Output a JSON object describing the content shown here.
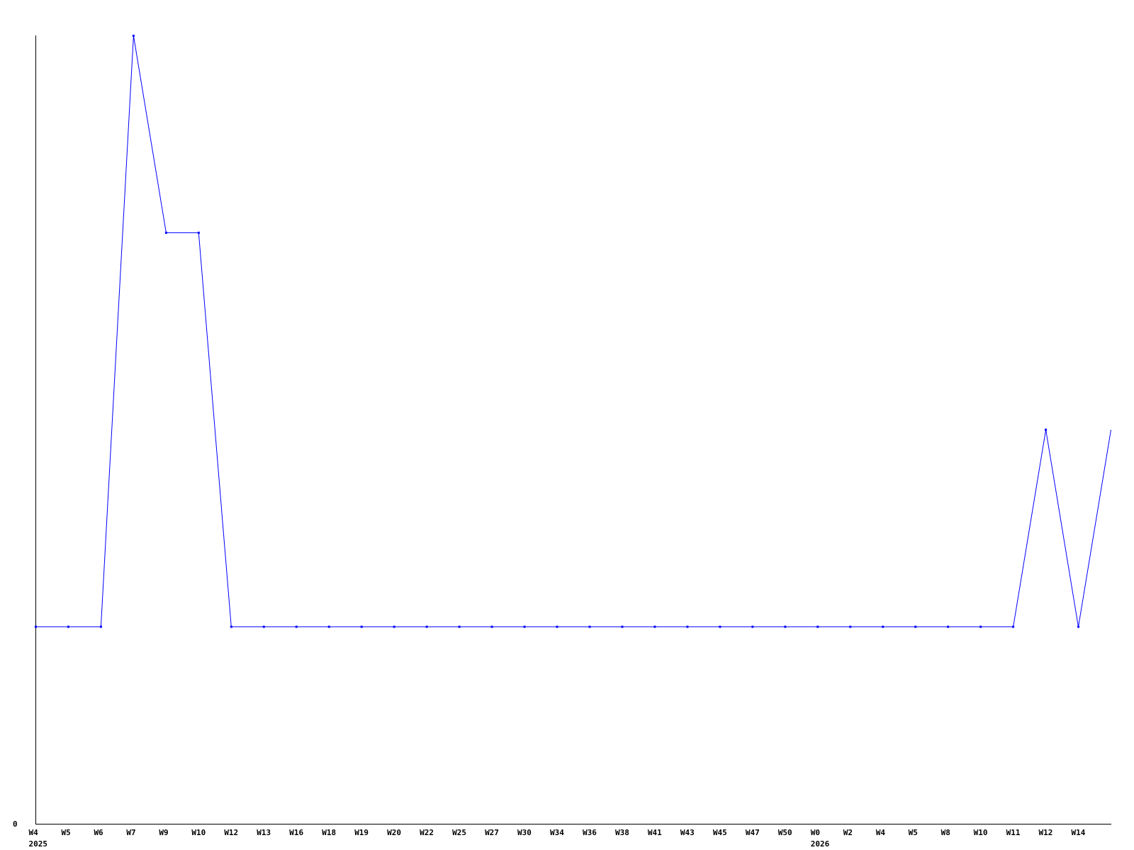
{
  "chart_data": {
    "type": "line",
    "title": "",
    "xlabel": "",
    "ylabel": "",
    "ylim": [
      0,
      4
    ],
    "y_tick_labels": [
      "0"
    ],
    "grid": false,
    "series_color": "#0000ff",
    "categories": [
      "W4",
      "W5",
      "W6",
      "W7",
      "W9",
      "W10",
      "W12",
      "W13",
      "W16",
      "W18",
      "W19",
      "W20",
      "W22",
      "W25",
      "W27",
      "W30",
      "W34",
      "W36",
      "W38",
      "W41",
      "W43",
      "W45",
      "W47",
      "W50",
      "W0",
      "W2",
      "W4",
      "W5",
      "W8",
      "W10",
      "W11",
      "W12",
      "W14",
      ""
    ],
    "year_labels": [
      {
        "index": 0,
        "label": "2025"
      },
      {
        "index": 24,
        "label": "2026"
      }
    ],
    "values": [
      1,
      1,
      1,
      4,
      3,
      3,
      1,
      1,
      1,
      1,
      1,
      1,
      1,
      1,
      1,
      1,
      1,
      1,
      1,
      1,
      1,
      1,
      1,
      1,
      1,
      1,
      1,
      1,
      1,
      1,
      1,
      2,
      1,
      2
    ]
  }
}
